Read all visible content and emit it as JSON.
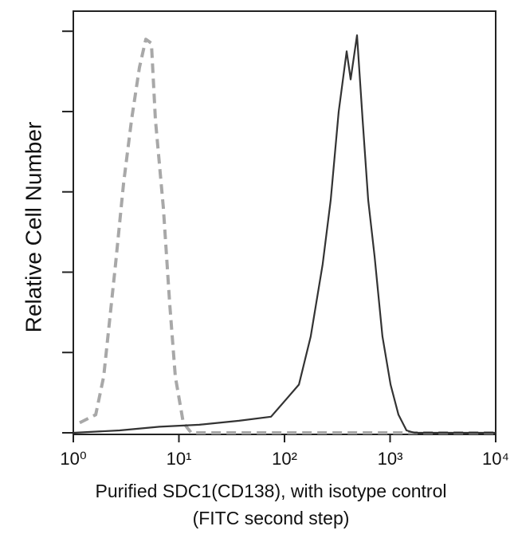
{
  "chart_data": {
    "type": "line",
    "ylabel": "Relative Cell Number",
    "xlabel": [
      "Purified SDC1(CD138), with isotype control",
      "(FITC second step)"
    ],
    "log_x": true,
    "xlim": [
      1,
      10000
    ],
    "xticks": [
      {
        "value": 1,
        "label": "10⁰"
      },
      {
        "value": 10,
        "label": "10¹"
      },
      {
        "value": 100,
        "label": "10²"
      },
      {
        "value": 1000,
        "label": "10³"
      },
      {
        "value": 10000,
        "label": "10⁴"
      }
    ],
    "ylim": [
      0,
      105
    ],
    "yticks": [
      0,
      20,
      40,
      60,
      80,
      100
    ],
    "series": [
      {
        "color": "#a8a8a8",
        "dash": true,
        "x": [
          1.15,
          1.63,
          1.94,
          2.51,
          2.99,
          3.56,
          4.23,
          4.86,
          5.49,
          5.99,
          7.13,
          8.19,
          9.25,
          11.0,
          13.1,
          10000
        ],
        "values": [
          2.5,
          4.5,
          14,
          42,
          62,
          78,
          91,
          98,
          97,
          78,
          56,
          32,
          14,
          2.5,
          0,
          0
        ]
      },
      {
        "color": "#333333",
        "dash": false,
        "x": [
          1,
          2.74,
          6.53,
          15.6,
          37.1,
          74.5,
          105,
          137,
          177,
          230,
          274,
          326,
          388,
          423,
          486,
          549,
          620,
          713,
          847,
          1010,
          1200,
          1430,
          1700,
          10000
        ],
        "values": [
          0,
          0.6,
          1.5,
          2,
          3,
          4,
          8.5,
          12,
          24,
          42,
          58,
          80,
          95,
          88,
          99,
          78,
          58,
          44,
          24,
          12,
          4.5,
          0.6,
          0,
          0
        ]
      }
    ]
  }
}
